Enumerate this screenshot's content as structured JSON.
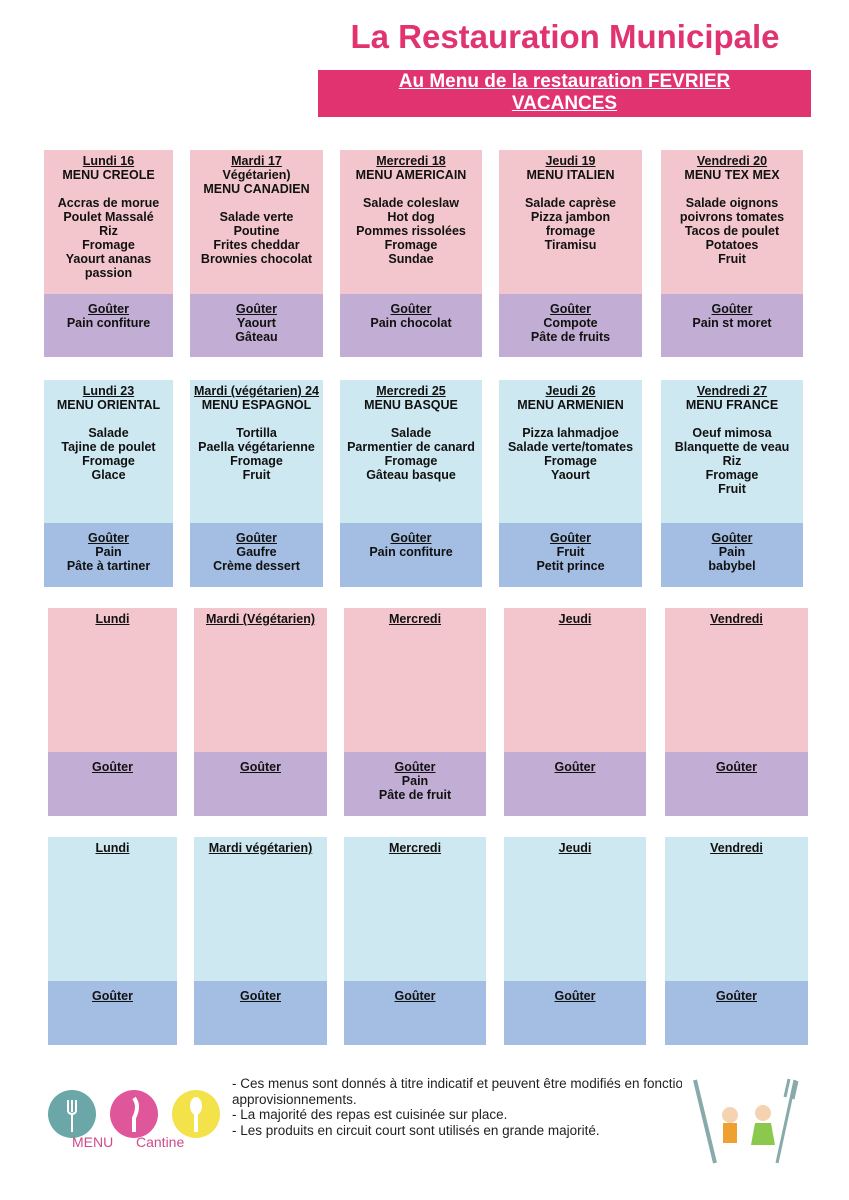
{
  "header": {
    "title": "La Restauration Municipale",
    "subtitle": [
      "Au Menu de la restauration FEVRIER",
      "VACANCES"
    ]
  },
  "weeks": [
    {
      "days": [
        {
          "day": "Lundi 16",
          "menu": [
            "MENU CREOLE",
            "",
            "Accras de morue",
            "Poulet Massalé",
            "Riz",
            "Fromage",
            "Yaourt ananas",
            "passion"
          ],
          "snack": {
            "title": "Goûter",
            "items": [
              "Pain confiture"
            ]
          }
        },
        {
          "day": "Mardi  17",
          "menu": [
            "Végétarien)",
            "MENU CANADIEN",
            "",
            "Salade verte",
            "Poutine",
            "Frites cheddar",
            "Brownies chocolat"
          ],
          "snack": {
            "title": "Goûter",
            "items": [
              "Yaourt",
              "Gâteau"
            ]
          }
        },
        {
          "day": "Mercredi  18",
          "menu": [
            "MENU AMERICAIN",
            "",
            "Salade coleslaw",
            "Hot dog",
            "Pommes rissolées",
            "Fromage",
            "Sundae"
          ],
          "snack": {
            "title": "Goûter",
            "items": [
              "Pain chocolat"
            ]
          }
        },
        {
          "day": "Jeudi  19",
          "menu": [
            "MENU ITALIEN",
            "",
            "Salade caprèse",
            "Pizza jambon",
            "fromage",
            "Tiramisu"
          ],
          "snack": {
            "title": "Goûter",
            "items": [
              "Compote",
              "Pâte de fruits"
            ]
          }
        },
        {
          "day": "Vendredi 20",
          "menu": [
            "MENU TEX MEX",
            "",
            "Salade oignons",
            "poivrons tomates",
            "Tacos de poulet",
            "Potatoes",
            "Fruit"
          ],
          "snack": {
            "title": "Goûter",
            "items": [
              "Pain st moret"
            ]
          }
        }
      ]
    },
    {
      "days": [
        {
          "day": "Lundi 23",
          "menu": [
            "MENU ORIENTAL",
            "",
            "Salade",
            "Tajine de poulet",
            "Fromage",
            "Glace"
          ],
          "snack": {
            "title": "Goûter",
            "items": [
              "Pain",
              "Pâte à tartiner"
            ]
          }
        },
        {
          "day": "Mardi  (végétarien) 24",
          "menu": [
            "MENU ESPAGNOL",
            "",
            "Tortilla",
            "Paella végétarienne",
            "Fromage",
            "Fruit"
          ],
          "snack": {
            "title": "Goûter",
            "items": [
              "Gaufre",
              "Crème dessert"
            ]
          }
        },
        {
          "day": "Mercredi 25",
          "menu": [
            "MENU BASQUE",
            "",
            "Salade",
            "Parmentier de canard",
            "Fromage",
            "Gâteau basque"
          ],
          "snack": {
            "title": "Goûter",
            "items": [
              "Pain confiture"
            ]
          }
        },
        {
          "day": "Jeudi 26",
          "menu": [
            "MENU ARMENIEN",
            "",
            "Pizza lahmadjoe",
            "Salade verte/tomates",
            "Fromage",
            "Yaourt"
          ],
          "snack": {
            "title": "Goûter",
            "items": [
              "Fruit",
              "Petit prince"
            ]
          }
        },
        {
          "day": "Vendredi 27",
          "menu": [
            "MENU FRANCE",
            "",
            "Oeuf mimosa",
            "Blanquette de veau",
            "Riz",
            "Fromage",
            "Fruit"
          ],
          "snack": {
            "title": "Goûter",
            "items": [
              "Pain",
              "babybel"
            ]
          }
        }
      ]
    },
    {
      "days": [
        {
          "day": "Lundi",
          "menu": [],
          "snack": {
            "title": "Goûter",
            "items": []
          }
        },
        {
          "day": "Mardi (Végétarien)",
          "menu": [],
          "snack": {
            "title": "Goûter",
            "items": []
          }
        },
        {
          "day": "Mercredi",
          "menu": [],
          "snack": {
            "title": "Goûter",
            "items": [
              "Pain",
              "Pâte de fruit"
            ]
          }
        },
        {
          "day": "Jeudi",
          "menu": [],
          "snack": {
            "title": "Goûter",
            "items": []
          }
        },
        {
          "day": "Vendredi",
          "menu": [],
          "snack": {
            "title": "Goûter",
            "items": []
          }
        }
      ]
    },
    {
      "days": [
        {
          "day": "Lundi",
          "menu": [],
          "snack": {
            "title": "Goûter",
            "items": []
          }
        },
        {
          "day": "Mardi  végétarien)",
          "menu": [],
          "snack": {
            "title": "Goûter",
            "items": []
          }
        },
        {
          "day": "Mercredi",
          "menu": [],
          "snack": {
            "title": "Goûter",
            "items": []
          }
        },
        {
          "day": "Jeudi",
          "menu": [],
          "snack": {
            "title": "Goûter",
            "items": []
          }
        },
        {
          "day": "Vendredi",
          "menu": [],
          "snack": {
            "title": "Goûter",
            "items": []
          }
        }
      ]
    }
  ],
  "notes": [
    "- Ces menus sont donnés à titre indicatif et peuvent être modifiés en fonction des",
    "approvisionnements.",
    "- La majorité des repas est cuisinée sur place.",
    "- Les produits en circuit court sont utilisés en grande majorité."
  ],
  "logo": {
    "words": [
      "MENU",
      "Cantine"
    ]
  }
}
